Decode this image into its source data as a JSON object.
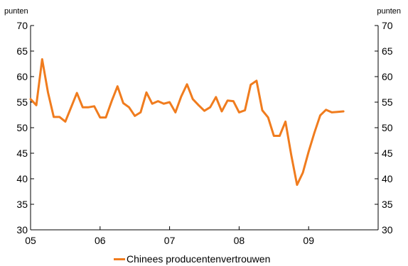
{
  "chart_data": {
    "type": "line",
    "unit_left": "punten",
    "unit_right": "punten",
    "ylim": [
      30,
      70
    ],
    "yticks": [
      30,
      35,
      40,
      45,
      50,
      55,
      60,
      65,
      70
    ],
    "xticks": [
      "05",
      "06",
      "07",
      "08",
      "09"
    ],
    "grid": false,
    "legend_position": "bottom",
    "series": [
      {
        "name": "Chinees producentenvertrouwen",
        "color": "#f07c1e",
        "x": [
          "2005-01",
          "2005-02",
          "2005-03",
          "2005-04",
          "2005-05",
          "2005-06",
          "2005-07",
          "2005-08",
          "2005-09",
          "2005-10",
          "2005-11",
          "2005-12",
          "2006-01",
          "2006-02",
          "2006-03",
          "2006-04",
          "2006-05",
          "2006-06",
          "2006-07",
          "2006-08",
          "2006-09",
          "2006-10",
          "2006-11",
          "2006-12",
          "2007-01",
          "2007-02",
          "2007-03",
          "2007-04",
          "2007-05",
          "2007-06",
          "2007-07",
          "2007-08",
          "2007-09",
          "2007-10",
          "2007-11",
          "2007-12",
          "2008-01",
          "2008-02",
          "2008-03",
          "2008-04",
          "2008-05",
          "2008-06",
          "2008-07",
          "2008-08",
          "2008-09",
          "2008-10",
          "2008-11",
          "2008-12",
          "2009-01",
          "2009-02",
          "2009-03",
          "2009-04",
          "2009-05",
          "2009-06",
          "2009-07"
        ],
        "values": [
          55.6,
          54.4,
          63.4,
          56.9,
          52.1,
          52.1,
          51.2,
          54.0,
          56.8,
          54.0,
          54.0,
          54.2,
          52.0,
          52.0,
          55.2,
          58.1,
          54.8,
          54.0,
          52.3,
          53.0,
          56.9,
          54.7,
          55.2,
          54.7,
          55.0,
          53.0,
          56.1,
          58.5,
          55.6,
          54.4,
          53.3,
          54.0,
          56.0,
          53.2,
          55.3,
          55.2,
          53.0,
          53.4,
          58.4,
          59.2,
          53.4,
          52.0,
          48.4,
          48.4,
          51.2,
          44.6,
          38.8,
          41.2,
          45.3,
          49.0,
          52.4,
          53.5,
          53.0,
          53.1,
          53.2
        ]
      }
    ]
  }
}
